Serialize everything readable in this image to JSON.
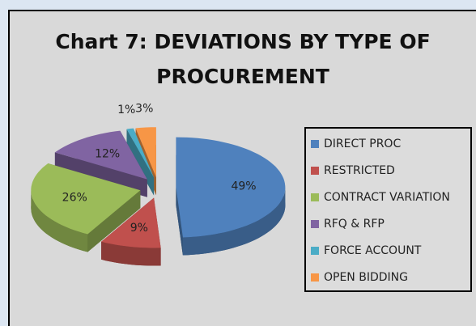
{
  "chart_data": {
    "type": "pie3d",
    "title": "Chart 7: DEVIATIONS BY TYPE OF PROCUREMENT",
    "categories": [
      "DIRECT PROC",
      "RESTRICTED",
      "CONTRACT VARIATION",
      "RFQ & RFP",
      "FORCE ACCOUNT",
      "OPEN BIDDING"
    ],
    "values": [
      49,
      9,
      26,
      12,
      1,
      3
    ],
    "value_labels": [
      "49%",
      "9%",
      "26%",
      "12%",
      "1%",
      "3%"
    ],
    "colors": [
      "#4f81bd",
      "#c0504d",
      "#9bbb59",
      "#8064a2",
      "#4bacc6",
      "#f79646"
    ],
    "legend": "right"
  }
}
